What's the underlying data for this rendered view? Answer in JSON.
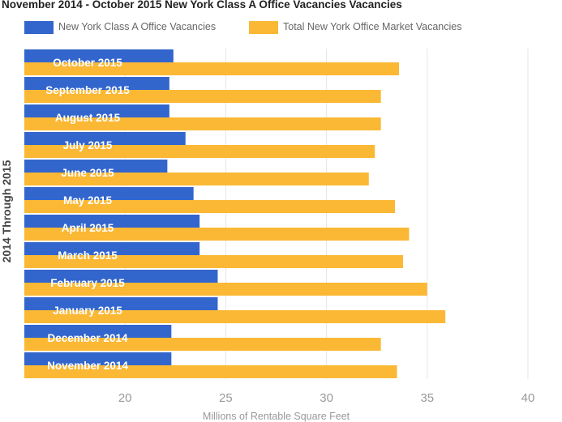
{
  "chart_data": {
    "type": "bar",
    "orientation": "horizontal",
    "title": "November 2014 - October 2015 New York Class A Office Vacancies Vacancies",
    "xlabel": "Millions of Rentable Square Feet",
    "ylabel": "2014 Through 2015",
    "xlim": [
      15,
      40
    ],
    "xticks": [
      "20",
      "25",
      "30",
      "35",
      "40"
    ],
    "xtick_values": [
      20,
      25,
      30,
      35,
      40
    ],
    "grid": true,
    "legend_position": "top-left",
    "categories": [
      "October 2015",
      "September 2015",
      "August 2015",
      "July 2015",
      "June 2015",
      "May 2015",
      "April 2015",
      "March 2015",
      "February 2015",
      "January 2015",
      "December 2014",
      "November 2014"
    ],
    "series": [
      {
        "name": "New York Class A Office Vacancies",
        "color": "#3366cc",
        "values": [
          22.4,
          22.2,
          22.2,
          23.0,
          22.1,
          23.4,
          23.7,
          23.7,
          24.6,
          24.6,
          22.3,
          22.3
        ]
      },
      {
        "name": "Total New York Office Market Vacancies",
        "color": "#fbb835",
        "values": [
          33.6,
          32.7,
          32.7,
          32.4,
          32.1,
          33.4,
          34.1,
          33.8,
          35.0,
          35.9,
          32.7,
          33.5
        ]
      }
    ]
  }
}
